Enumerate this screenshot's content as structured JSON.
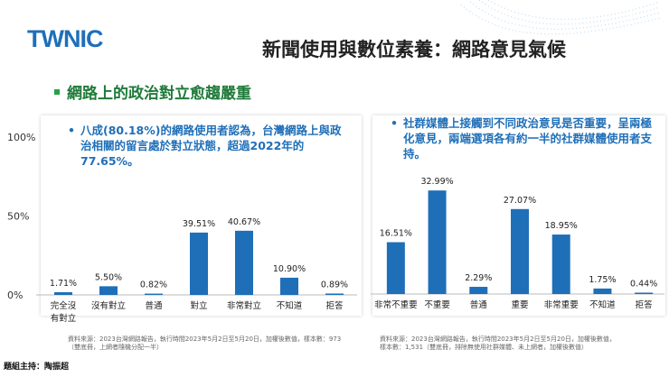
{
  "logo": {
    "text": "TWNIC"
  },
  "page_title": "新聞使用與數位素養：網路意見氣候",
  "section_title": "網路上的政治對立愈趨嚴重",
  "left_note": "八成(80.18%)的網路使用者認為，台灣網路上與政治相關的留言處於對立狀態，超過2022年的77.65%。",
  "right_note": "社群媒體上接觸到不同政治意見是否重要，呈兩極化意見，兩端選項各有約一半的社群媒體使用者支持。",
  "left_source": [
    "資料來源：2023台灣網路報告，執行時間2023年5月2日至5月20日，加權後數值，樣本數：973",
    "（雙底冊，上網者隨機分配一半）"
  ],
  "right_source": [
    "資料來源：2023台灣網路報告，執行時間2023年5月2日至5月20日，加權後數值，",
    "樣本數：1,531（雙底冊，排除無使用社群媒體、未上網者，加權後數值）"
  ],
  "host": "題組主持：陶振超",
  "colors": {
    "bar": "#1f6fb8",
    "accent_green": "#22a345"
  },
  "chart_data": [
    {
      "type": "bar",
      "title": "",
      "categories": [
        "完全沒有對立",
        "沒有對立",
        "普通",
        "對立",
        "非常對立",
        "不知道",
        "拒答"
      ],
      "values": [
        1.71,
        5.5,
        0.82,
        39.51,
        40.67,
        10.9,
        0.89
      ],
      "labels": [
        "1.71%",
        "5.50%",
        "0.82%",
        "39.51%",
        "40.67%",
        "10.90%",
        "0.89%"
      ],
      "yticks": [
        "100%",
        "50%",
        "0%"
      ],
      "ylim": [
        0,
        100
      ]
    },
    {
      "type": "bar",
      "title": "",
      "categories": [
        "非常不重要",
        "不重要",
        "普通",
        "重要",
        "非常重要",
        "不知道",
        "拒答"
      ],
      "values": [
        16.51,
        32.99,
        2.29,
        27.07,
        18.95,
        1.75,
        0.44
      ],
      "labels": [
        "16.51%",
        "32.99%",
        "2.29%",
        "27.07%",
        "18.95%",
        "1.75%",
        "0.44%"
      ],
      "ylim": [
        0,
        50
      ]
    }
  ]
}
